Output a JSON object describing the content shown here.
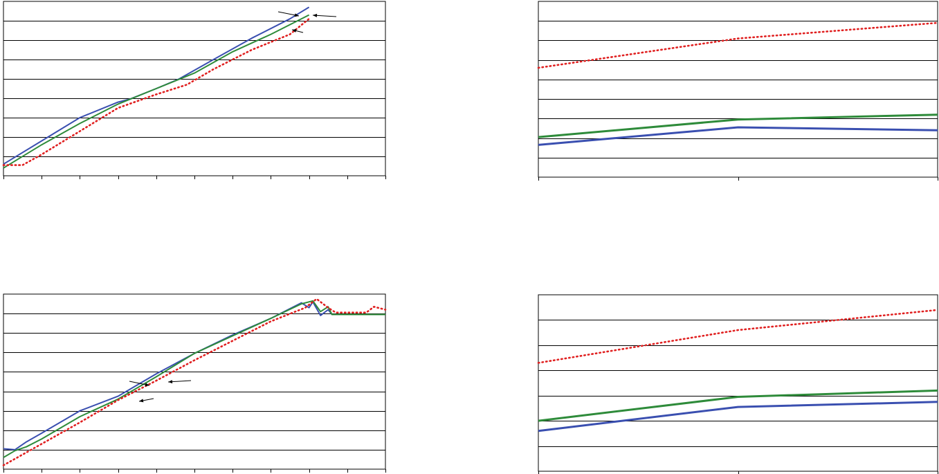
{
  "chart_data": [
    {
      "type": "line",
      "grid": true,
      "xlim": [
        0,
        10
      ],
      "ylim": [
        0,
        9
      ],
      "x_tick_count": 10,
      "series": [
        {
          "color": "#3a4fb0",
          "style": "solid",
          "x": [
            0,
            1,
            2,
            3,
            3.3,
            4,
            4.6,
            5.5,
            6.5,
            7.5,
            8.0
          ],
          "y": [
            0.6,
            1.8,
            3.0,
            3.8,
            3.95,
            4.5,
            5.0,
            6.0,
            7.1,
            8.1,
            8.7
          ]
        },
        {
          "color": "#2e8b3a",
          "style": "solid",
          "x": [
            0,
            1,
            2,
            3,
            4,
            5,
            6,
            7,
            8.0
          ],
          "y": [
            0.4,
            1.6,
            2.7,
            3.7,
            4.5,
            5.3,
            6.4,
            7.3,
            8.3
          ]
        },
        {
          "color": "#e02020",
          "style": "dotted",
          "x": [
            0,
            0.5,
            1,
            2,
            3,
            4,
            4.8,
            5.5,
            6.5,
            7.5,
            8.0
          ],
          "y": [
            0.55,
            0.55,
            1.1,
            2.3,
            3.5,
            4.2,
            4.7,
            5.5,
            6.5,
            7.3,
            8.1
          ]
        }
      ]
    },
    {
      "type": "line",
      "grid": true,
      "xlim": [
        0,
        2
      ],
      "ylim": [
        0,
        9
      ],
      "x_tick_count": 2,
      "series": [
        {
          "color": "#e02020",
          "style": "dotted",
          "x": [
            0,
            1,
            2
          ],
          "y": [
            5.6,
            7.1,
            7.9
          ]
        },
        {
          "color": "#2e8b3a",
          "style": "solid",
          "x": [
            0,
            1,
            2
          ],
          "y": [
            2.05,
            2.95,
            3.2
          ]
        },
        {
          "color": "#3a4fb0",
          "style": "solid",
          "x": [
            0,
            1,
            2
          ],
          "y": [
            1.65,
            2.55,
            2.4
          ]
        }
      ]
    },
    {
      "type": "line",
      "grid": true,
      "xlim": [
        0,
        10
      ],
      "ylim": [
        0,
        9
      ],
      "x_tick_count": 10,
      "series": [
        {
          "color": "#3a4fb0",
          "style": "solid",
          "x": [
            0,
            0.3,
            0.6,
            1,
            2,
            3,
            4,
            5,
            6,
            7,
            7.8,
            8.0,
            8.1,
            8.3,
            8.5,
            8.6,
            10
          ],
          "y": [
            1.05,
            1.0,
            1.4,
            1.85,
            3.0,
            3.75,
            4.9,
            5.95,
            6.9,
            7.75,
            8.55,
            8.3,
            8.6,
            7.9,
            8.2,
            7.95,
            7.95
          ]
        },
        {
          "color": "#2e8b3a",
          "style": "solid",
          "x": [
            0,
            0.3,
            0.6,
            1,
            2,
            3,
            4,
            5,
            6,
            7,
            7.8,
            8.1,
            8.3,
            8.5,
            8.6,
            10
          ],
          "y": [
            0.6,
            0.95,
            1.15,
            1.55,
            2.7,
            3.6,
            4.75,
            5.95,
            6.85,
            7.75,
            8.5,
            8.65,
            8.1,
            8.35,
            7.95,
            7.95
          ]
        },
        {
          "color": "#e02020",
          "style": "dotted",
          "x": [
            0,
            1,
            2,
            3,
            4,
            5,
            6,
            7,
            7.9,
            8.2,
            8.5,
            8.7,
            9.0,
            9.5,
            9.7,
            10
          ],
          "y": [
            0.2,
            1.3,
            2.4,
            3.55,
            4.55,
            5.6,
            6.6,
            7.6,
            8.3,
            8.75,
            8.3,
            8.05,
            8.05,
            8.05,
            8.35,
            8.2
          ]
        }
      ]
    },
    {
      "type": "line",
      "grid": true,
      "xlim": [
        0,
        2
      ],
      "ylim": [
        0,
        7
      ],
      "x_tick_count": 2,
      "series": [
        {
          "color": "#e02020",
          "style": "dotted",
          "x": [
            0,
            1,
            2
          ],
          "y": [
            4.3,
            5.6,
            6.4
          ]
        },
        {
          "color": "#2e8b3a",
          "style": "solid",
          "x": [
            0,
            1,
            2
          ],
          "y": [
            2.0,
            2.95,
            3.2
          ]
        },
        {
          "color": "#3a4fb0",
          "style": "solid",
          "x": [
            0,
            1,
            2
          ],
          "y": [
            1.6,
            2.55,
            2.75
          ]
        }
      ]
    }
  ]
}
